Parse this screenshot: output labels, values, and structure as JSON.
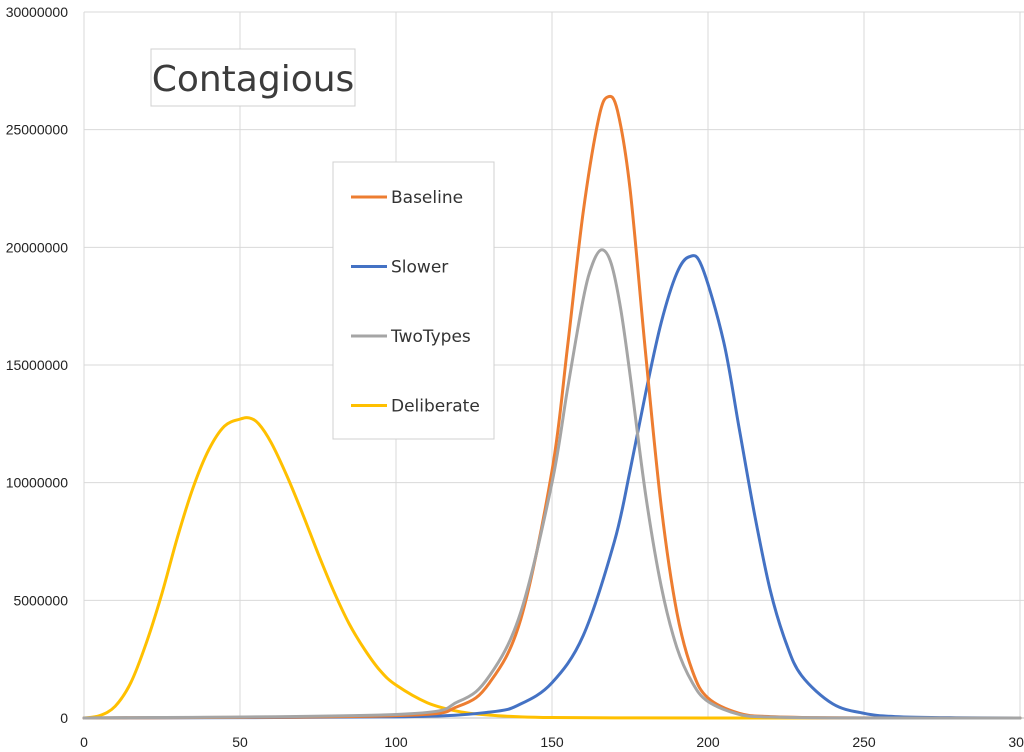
{
  "chart_data": {
    "type": "line",
    "title": "Contagious",
    "xlabel": "",
    "ylabel": "",
    "xlim": [
      0,
      300
    ],
    "ylim": [
      0,
      30000000
    ],
    "xticks": [
      0,
      50,
      100,
      150,
      200,
      250,
      300
    ],
    "yticks": [
      0,
      5000000,
      10000000,
      15000000,
      20000000,
      25000000,
      30000000
    ],
    "xtick_labels": [
      "0",
      "50",
      "100",
      "150",
      "200",
      "250",
      "300"
    ],
    "ytick_labels": [
      "0",
      "5000000",
      "10000000",
      "15000000",
      "20000000",
      "25000000",
      "30000000"
    ],
    "grid": true,
    "legend_position": "center",
    "series": [
      {
        "name": "Baseline",
        "color": "#ED7D31",
        "x": [
          0,
          100,
          120,
          130,
          140,
          150,
          155,
          160,
          165,
          168,
          171,
          175,
          180,
          185,
          190,
          195,
          200,
          210,
          220,
          240,
          270,
          300
        ],
        "y": [
          0,
          100000,
          500000,
          1500000,
          4200000,
          10500000,
          15800000,
          21500000,
          25500000,
          26400000,
          25800000,
          22500000,
          15500000,
          9000000,
          4500000,
          2000000,
          850000,
          200000,
          60000,
          10000,
          0,
          0
        ]
      },
      {
        "name": "Slower",
        "color": "#4472C4",
        "x": [
          0,
          100,
          130,
          140,
          150,
          160,
          170,
          175,
          180,
          185,
          190,
          194,
          198,
          205,
          210,
          215,
          220,
          225,
          230,
          240,
          250,
          260,
          280,
          300
        ],
        "y": [
          0,
          50000,
          250000,
          600000,
          1500000,
          3500000,
          7500000,
          10500000,
          13800000,
          16800000,
          18900000,
          19600000,
          19200000,
          16000000,
          12300000,
          8600000,
          5400000,
          3200000,
          1800000,
          600000,
          200000,
          60000,
          10000,
          0
        ]
      },
      {
        "name": "TwoTypes",
        "color": "#A5A5A5",
        "x": [
          0,
          100,
          120,
          130,
          140,
          150,
          155,
          160,
          163,
          166,
          169,
          172,
          175,
          180,
          185,
          190,
          195,
          200,
          210,
          220,
          240,
          270,
          300
        ],
        "y": [
          0,
          150000,
          700000,
          1800000,
          4500000,
          10000000,
          14000000,
          17800000,
          19300000,
          19900000,
          19300000,
          17400000,
          14600000,
          9500000,
          5600000,
          3000000,
          1500000,
          700000,
          150000,
          40000,
          5000,
          0,
          0
        ]
      },
      {
        "name": "Deliberate",
        "color": "#FFC000",
        "x": [
          0,
          5,
          10,
          15,
          20,
          25,
          30,
          35,
          40,
          45,
          50,
          53,
          56,
          60,
          65,
          70,
          75,
          80,
          85,
          90,
          95,
          100,
          110,
          120,
          130,
          140,
          150,
          170,
          200,
          250,
          300
        ],
        "y": [
          0,
          100000,
          500000,
          1500000,
          3200000,
          5300000,
          7700000,
          9800000,
          11400000,
          12400000,
          12700000,
          12750000,
          12500000,
          11700000,
          10300000,
          8700000,
          7000000,
          5400000,
          4000000,
          2900000,
          2000000,
          1400000,
          650000,
          280000,
          120000,
          50000,
          20000,
          5000,
          1000,
          0,
          0
        ]
      }
    ]
  }
}
